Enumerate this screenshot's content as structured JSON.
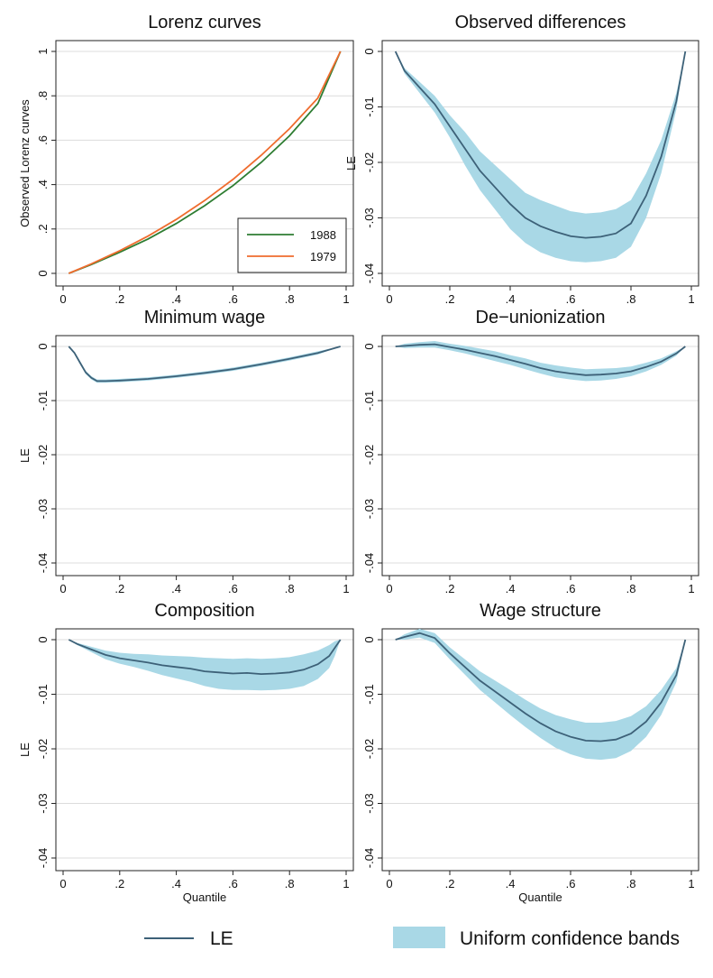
{
  "chart_data": [
    {
      "type": "line",
      "title": "Lorenz curves",
      "xlabel": "",
      "ylabel": "Observed Lorenz curves",
      "xlim": [
        0,
        1
      ],
      "ylim": [
        0,
        1
      ],
      "xticks": [
        "0",
        ".2",
        ".4",
        ".6",
        ".8",
        "1"
      ],
      "yticks": [
        "0",
        ".2",
        ".4",
        ".6",
        ".8",
        "1"
      ],
      "ytick_values": [
        0,
        0.2,
        0.4,
        0.6,
        0.8,
        1
      ],
      "legend_position": "bottom-right",
      "x": [
        0.02,
        0.1,
        0.2,
        0.3,
        0.4,
        0.5,
        0.6,
        0.7,
        0.8,
        0.9,
        0.98
      ],
      "series": [
        {
          "name": "1988",
          "color": "#2e7d32",
          "y": [
            0.0,
            0.04,
            0.095,
            0.155,
            0.225,
            0.305,
            0.395,
            0.5,
            0.62,
            0.765,
            1.0
          ]
        },
        {
          "name": "1979",
          "color": "#ef6c2e",
          "y": [
            0.0,
            0.043,
            0.102,
            0.168,
            0.243,
            0.328,
            0.423,
            0.532,
            0.652,
            0.79,
            1.0
          ]
        }
      ]
    },
    {
      "type": "line",
      "title": "Observed differences",
      "xlabel": "",
      "ylabel": "LE",
      "xlim": [
        0,
        1
      ],
      "ylim": [
        -0.04,
        0
      ],
      "xticks": [
        "0",
        ".2",
        ".4",
        ".6",
        ".8",
        "1"
      ],
      "yticks": [
        "0",
        "-.01",
        "-.02",
        "-.03",
        "-.04"
      ],
      "ytick_values": [
        0,
        -0.01,
        -0.02,
        -0.03,
        -0.04
      ],
      "x": [
        0.02,
        0.05,
        0.1,
        0.15,
        0.2,
        0.25,
        0.3,
        0.35,
        0.4,
        0.45,
        0.5,
        0.55,
        0.6,
        0.65,
        0.7,
        0.75,
        0.8,
        0.85,
        0.9,
        0.95,
        0.98
      ],
      "series": [
        {
          "name": "LE",
          "y": [
            0.0,
            -0.0035,
            -0.0065,
            -0.0095,
            -0.0135,
            -0.0175,
            -0.0215,
            -0.0245,
            -0.0275,
            -0.03,
            -0.0315,
            -0.0325,
            -0.0333,
            -0.0336,
            -0.0334,
            -0.0328,
            -0.031,
            -0.026,
            -0.019,
            -0.009,
            0.0
          ]
        },
        {
          "name": "Uniform confidence bands",
          "band": true,
          "lower": [
            0.0,
            -0.004,
            -0.0075,
            -0.011,
            -0.0155,
            -0.0205,
            -0.025,
            -0.0285,
            -0.032,
            -0.0345,
            -0.0362,
            -0.0372,
            -0.0378,
            -0.038,
            -0.0378,
            -0.0372,
            -0.0352,
            -0.03,
            -0.022,
            -0.0105,
            0.0
          ],
          "upper": [
            0.0,
            -0.003,
            -0.0055,
            -0.008,
            -0.0115,
            -0.0145,
            -0.018,
            -0.0205,
            -0.023,
            -0.0255,
            -0.0268,
            -0.0278,
            -0.0288,
            -0.0292,
            -0.029,
            -0.0284,
            -0.0268,
            -0.022,
            -0.016,
            -0.0075,
            0.0
          ]
        }
      ]
    },
    {
      "type": "line",
      "title": "Minimum wage",
      "xlabel": "",
      "ylabel": "LE",
      "xlim": [
        0,
        1
      ],
      "ylim": [
        -0.04,
        0
      ],
      "xticks": [
        "0",
        ".2",
        ".4",
        ".6",
        ".8",
        "1"
      ],
      "yticks": [
        "0",
        "-.01",
        "-.02",
        "-.03",
        "-.04"
      ],
      "ytick_values": [
        0,
        -0.01,
        -0.02,
        -0.03,
        -0.04
      ],
      "x": [
        0.02,
        0.04,
        0.06,
        0.08,
        0.1,
        0.12,
        0.15,
        0.2,
        0.3,
        0.4,
        0.5,
        0.6,
        0.7,
        0.8,
        0.9,
        0.98
      ],
      "series": [
        {
          "name": "LE",
          "y": [
            0.0,
            -0.0012,
            -0.003,
            -0.0048,
            -0.0058,
            -0.0064,
            -0.0064,
            -0.0063,
            -0.006,
            -0.0055,
            -0.0049,
            -0.0042,
            -0.0033,
            -0.0023,
            -0.0012,
            0.0
          ]
        },
        {
          "name": "Uniform confidence bands",
          "band": true,
          "lower": [
            0.0,
            -0.0014,
            -0.0033,
            -0.0051,
            -0.0061,
            -0.0067,
            -0.0067,
            -0.0066,
            -0.0063,
            -0.0058,
            -0.0052,
            -0.0045,
            -0.0036,
            -0.0026,
            -0.0015,
            0.0
          ],
          "upper": [
            0.0,
            -0.001,
            -0.0027,
            -0.0045,
            -0.0055,
            -0.0061,
            -0.0061,
            -0.006,
            -0.0057,
            -0.0052,
            -0.0046,
            -0.0039,
            -0.003,
            -0.002,
            -0.0009,
            0.0
          ]
        }
      ]
    },
    {
      "type": "line",
      "title": "De−unionization",
      "xlabel": "",
      "ylabel": "",
      "xlim": [
        0,
        1
      ],
      "ylim": [
        -0.04,
        0
      ],
      "xticks": [
        "0",
        ".2",
        ".4",
        ".6",
        ".8",
        "1"
      ],
      "yticks": [
        "0",
        "-.01",
        "-.02",
        "-.03",
        "-.04"
      ],
      "ytick_values": [
        0,
        -0.01,
        -0.02,
        -0.03,
        -0.04
      ],
      "x": [
        0.02,
        0.05,
        0.1,
        0.15,
        0.2,
        0.25,
        0.3,
        0.35,
        0.4,
        0.45,
        0.5,
        0.55,
        0.6,
        0.65,
        0.7,
        0.75,
        0.8,
        0.85,
        0.9,
        0.95,
        0.98
      ],
      "series": [
        {
          "name": "LE",
          "y": [
            0.0,
            0.0001,
            0.0003,
            0.0004,
            -0.0001,
            -0.0006,
            -0.0012,
            -0.0018,
            -0.0025,
            -0.0032,
            -0.004,
            -0.0046,
            -0.005,
            -0.0053,
            -0.0052,
            -0.005,
            -0.0046,
            -0.0038,
            -0.0028,
            -0.0013,
            0.0
          ]
        },
        {
          "name": "Uniform confidence bands",
          "band": true,
          "lower": [
            0.0,
            -0.0003,
            -0.0002,
            -0.0002,
            -0.0007,
            -0.0013,
            -0.002,
            -0.0027,
            -0.0034,
            -0.0042,
            -0.005,
            -0.0057,
            -0.0061,
            -0.0064,
            -0.0063,
            -0.006,
            -0.0055,
            -0.0046,
            -0.0034,
            -0.0017,
            0.0
          ]
        },
        {
          "name": "Uniform confidence bands upper",
          "band_upper": true,
          "upper": [
            0.0,
            0.0005,
            0.0008,
            0.001,
            0.0005,
            0.0001,
            -0.0004,
            -0.0009,
            -0.0016,
            -0.0022,
            -0.003,
            -0.0035,
            -0.0039,
            -0.0042,
            -0.0041,
            -0.004,
            -0.0037,
            -0.003,
            -0.0022,
            -0.0009,
            0.0
          ]
        }
      ]
    },
    {
      "type": "line",
      "title": "Composition",
      "xlabel": "Quantile",
      "ylabel": "LE",
      "xlim": [
        0,
        1
      ],
      "ylim": [
        -0.04,
        0
      ],
      "xticks": [
        "0",
        ".2",
        ".4",
        ".6",
        ".8",
        "1"
      ],
      "yticks": [
        "0",
        "-.01",
        "-.02",
        "-.03",
        "-.04"
      ],
      "ytick_values": [
        0,
        -0.01,
        -0.02,
        -0.03,
        -0.04
      ],
      "x": [
        0.02,
        0.05,
        0.1,
        0.15,
        0.2,
        0.25,
        0.3,
        0.35,
        0.4,
        0.45,
        0.5,
        0.55,
        0.6,
        0.65,
        0.7,
        0.75,
        0.8,
        0.85,
        0.9,
        0.94,
        0.96,
        0.98
      ],
      "series": [
        {
          "name": "LE",
          "y": [
            0.0,
            -0.0008,
            -0.0018,
            -0.0028,
            -0.0034,
            -0.0038,
            -0.0042,
            -0.0047,
            -0.005,
            -0.0053,
            -0.0058,
            -0.006,
            -0.0062,
            -0.0061,
            -0.0063,
            -0.0062,
            -0.006,
            -0.0055,
            -0.0045,
            -0.003,
            -0.0015,
            0.0
          ]
        },
        {
          "name": "Uniform confidence bands",
          "band": true,
          "lower": [
            0.0,
            -0.001,
            -0.0023,
            -0.0036,
            -0.0044,
            -0.005,
            -0.0057,
            -0.0065,
            -0.0071,
            -0.0077,
            -0.0085,
            -0.009,
            -0.0092,
            -0.0092,
            -0.0093,
            -0.0092,
            -0.009,
            -0.0085,
            -0.0072,
            -0.0052,
            -0.003,
            0.0
          ],
          "upper": [
            0.0,
            -0.0006,
            -0.0013,
            -0.002,
            -0.0024,
            -0.0026,
            -0.0027,
            -0.0029,
            -0.003,
            -0.0031,
            -0.0033,
            -0.0034,
            -0.0035,
            -0.0034,
            -0.0035,
            -0.0034,
            -0.0032,
            -0.0027,
            -0.002,
            -0.001,
            -0.0003,
            0.0
          ]
        }
      ]
    },
    {
      "type": "line",
      "title": "Wage structure",
      "xlabel": "Quantile",
      "ylabel": "",
      "xlim": [
        0,
        1
      ],
      "ylim": [
        -0.04,
        0
      ],
      "xticks": [
        "0",
        ".2",
        ".4",
        ".6",
        ".8",
        "1"
      ],
      "yticks": [
        "0",
        "-.01",
        "-.02",
        "-.03",
        "-.04"
      ],
      "ytick_values": [
        0,
        -0.01,
        -0.02,
        -0.03,
        -0.04
      ],
      "x": [
        0.02,
        0.05,
        0.1,
        0.15,
        0.2,
        0.25,
        0.3,
        0.35,
        0.4,
        0.45,
        0.5,
        0.55,
        0.6,
        0.65,
        0.7,
        0.75,
        0.8,
        0.85,
        0.9,
        0.95,
        0.98
      ],
      "series": [
        {
          "name": "LE",
          "y": [
            0.0,
            0.0005,
            0.0012,
            0.0003,
            -0.0025,
            -0.005,
            -0.0075,
            -0.0095,
            -0.0115,
            -0.0135,
            -0.0153,
            -0.0168,
            -0.0178,
            -0.0185,
            -0.0186,
            -0.0183,
            -0.0172,
            -0.015,
            -0.0115,
            -0.0065,
            0.0
          ]
        },
        {
          "name": "Uniform confidence bands",
          "band": true,
          "lower": [
            0.0,
            0.0,
            0.0004,
            -0.0006,
            -0.0036,
            -0.0064,
            -0.0092,
            -0.0115,
            -0.0138,
            -0.016,
            -0.018,
            -0.0198,
            -0.021,
            -0.0218,
            -0.022,
            -0.0217,
            -0.0204,
            -0.0178,
            -0.0138,
            -0.0078,
            0.0
          ],
          "upper": [
            0.0,
            0.001,
            0.002,
            0.0012,
            -0.0014,
            -0.0036,
            -0.0058,
            -0.0075,
            -0.0092,
            -0.011,
            -0.0126,
            -0.0138,
            -0.0146,
            -0.0152,
            -0.0152,
            -0.0149,
            -0.014,
            -0.0122,
            -0.0092,
            -0.0052,
            0.0
          ]
        }
      ]
    }
  ],
  "legend": {
    "le_label": "LE",
    "band_label": "Uniform confidence bands"
  },
  "colors": {
    "le_line": "#3d6178",
    "band_fill": "#a9d8e6",
    "grid": "#dcdcdc",
    "line_1988": "#2e7d32",
    "line_1979": "#ef6c2e"
  }
}
